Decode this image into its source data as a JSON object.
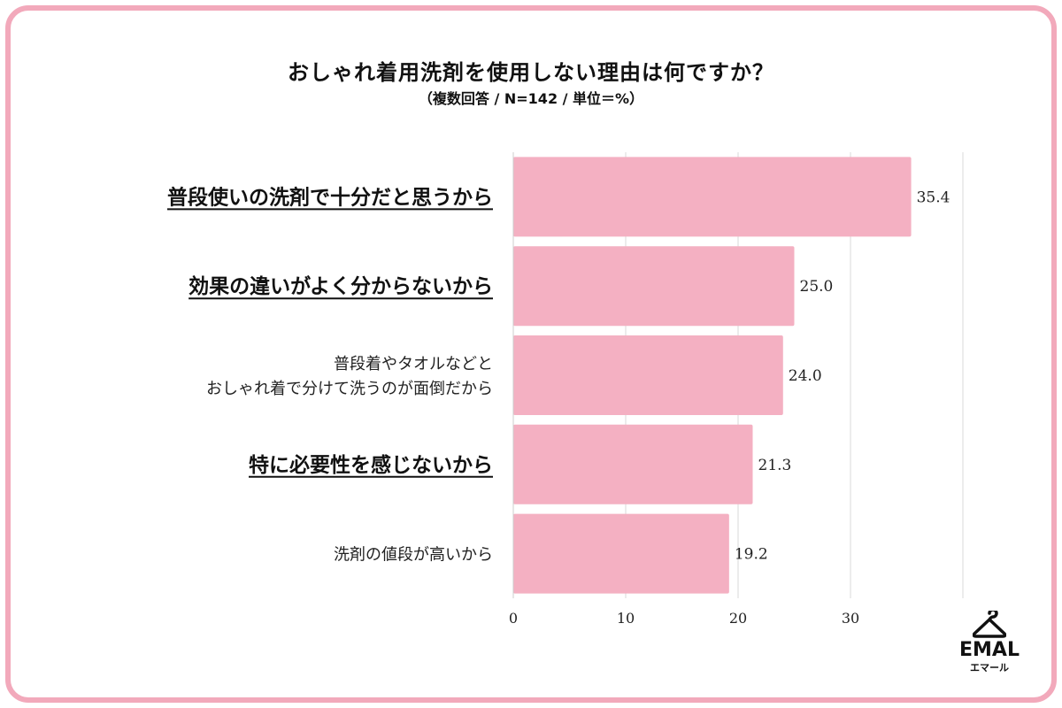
{
  "title": "おしゃれ着用洗剤を使用しない理由は何ですか？",
  "subtitle": "（複数回答 / N=142 / 単位＝%）",
  "logo": {
    "word": "EMAL",
    "sub": "エマール",
    "icon": "hanger-icon"
  },
  "colors": {
    "bar": "#f4b0c2",
    "frame": "#f2a9bb",
    "grid": "#d9d9d9"
  },
  "chart_data": {
    "type": "bar",
    "orientation": "horizontal",
    "categories": [
      [
        "普段使いの洗剤で十分だと思うから"
      ],
      [
        "効果の違いがよく分からないから"
      ],
      [
        "普段着やタオルなどと",
        "おしゃれ着で分けて洗うのが面倒だから"
      ],
      [
        "特に必要性を感じないから"
      ],
      [
        "洗剤の値段が高いから"
      ]
    ],
    "emphasized": [
      true,
      true,
      false,
      true,
      false
    ],
    "values": [
      35.4,
      25.0,
      24.0,
      21.3,
      19.2
    ],
    "value_labels": [
      "35.4",
      "25.0",
      "24.0",
      "21.3",
      "19.2"
    ],
    "xlim": [
      0,
      40
    ],
    "xticks": [
      0,
      10,
      20,
      30
    ],
    "grid": true,
    "title": "おしゃれ着用洗剤を使用しない理由は何ですか？",
    "xlabel": "",
    "ylabel": ""
  }
}
